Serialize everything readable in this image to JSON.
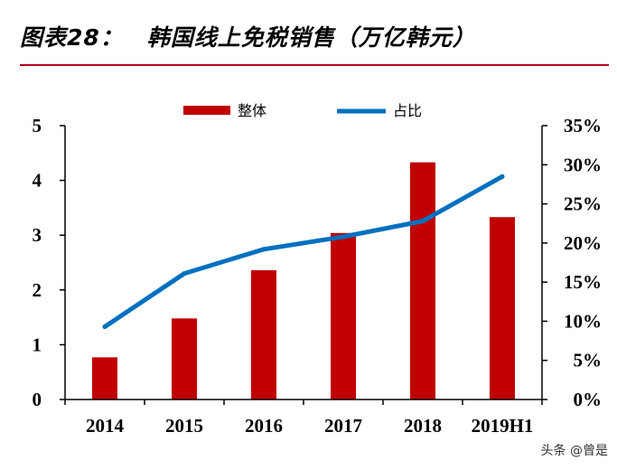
{
  "header": {
    "title": "图表28：　韩国线上免税销售（万亿韩元）"
  },
  "watermark": "头条 @曾是",
  "colors": {
    "bar": "#c00000",
    "line": "#0070c0",
    "rule": "#b00020",
    "axis": "#000000"
  },
  "chart_data": {
    "type": "bar",
    "categories": [
      "2014",
      "2015",
      "2016",
      "2017",
      "2018",
      "2019H1"
    ],
    "series": [
      {
        "name": "整体",
        "type": "bar",
        "axis": "left",
        "values": [
          0.77,
          1.48,
          2.36,
          3.04,
          4.33,
          3.33
        ]
      },
      {
        "name": "占比",
        "type": "line",
        "axis": "right",
        "values": [
          0.093,
          0.161,
          0.192,
          0.208,
          0.228,
          0.285
        ]
      }
    ],
    "y_left": {
      "min": 0,
      "max": 5,
      "ticks": [
        0,
        1,
        2,
        3,
        4,
        5
      ],
      "tick_labels": [
        "0",
        "1",
        "2",
        "3",
        "4",
        "5"
      ]
    },
    "y_right": {
      "min": 0,
      "max": 0.35,
      "ticks": [
        0,
        0.05,
        0.1,
        0.15,
        0.2,
        0.25,
        0.3,
        0.35
      ],
      "tick_labels": [
        "0%",
        "5%",
        "10%",
        "15%",
        "20%",
        "25%",
        "30%",
        "35%"
      ]
    },
    "legend": {
      "position": "top-center",
      "items": [
        "整体",
        "占比"
      ]
    },
    "grid": false
  }
}
